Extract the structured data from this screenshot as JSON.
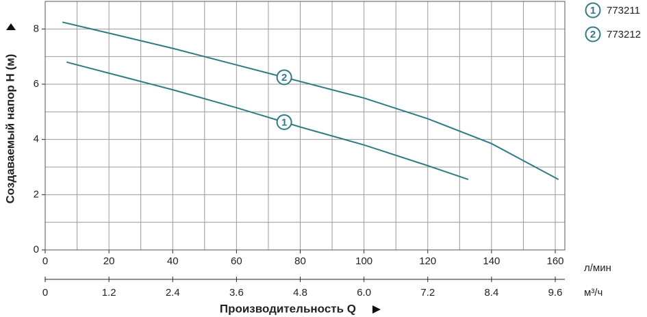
{
  "chart_data": {
    "type": "line",
    "ylabel": "Создаваемый напор H (м)",
    "xlabel": "Производительность Q",
    "x_unit": "л/мин",
    "x2_unit": "м³/ч",
    "xlim": [
      0,
      163
    ],
    "xticks": [
      0,
      20,
      40,
      60,
      80,
      100,
      120,
      140,
      160
    ],
    "xminor": [
      10,
      30,
      50,
      70,
      90,
      110,
      130,
      150
    ],
    "x2lim": [
      0,
      9.78
    ],
    "x2ticks": [
      0,
      1.2,
      2.4,
      3.6,
      4.8,
      {
        "value": 6,
        "label": "6.0"
      },
      7.2,
      8.4,
      9.6
    ],
    "ylim": [
      0,
      9
    ],
    "yticks": [
      0,
      2,
      4,
      6,
      8
    ],
    "yminor": [
      1,
      3,
      5,
      7
    ],
    "grid": true,
    "series": [
      {
        "name": "773211",
        "label": "1",
        "color": "#2e7b84",
        "x": [
          6.7,
          20,
          40,
          60,
          80,
          100,
          120,
          132.7
        ],
        "values": [
          6.8,
          6.4,
          5.8,
          5.15,
          4.45,
          3.8,
          3.05,
          2.55
        ]
      },
      {
        "name": "773212",
        "label": "2",
        "color": "#2e7b84",
        "x": [
          5.4,
          20,
          40,
          60,
          80,
          100,
          120,
          140,
          161
        ],
        "values": [
          8.25,
          7.85,
          7.3,
          6.7,
          6.1,
          5.5,
          4.75,
          3.85,
          2.55
        ]
      }
    ]
  }
}
